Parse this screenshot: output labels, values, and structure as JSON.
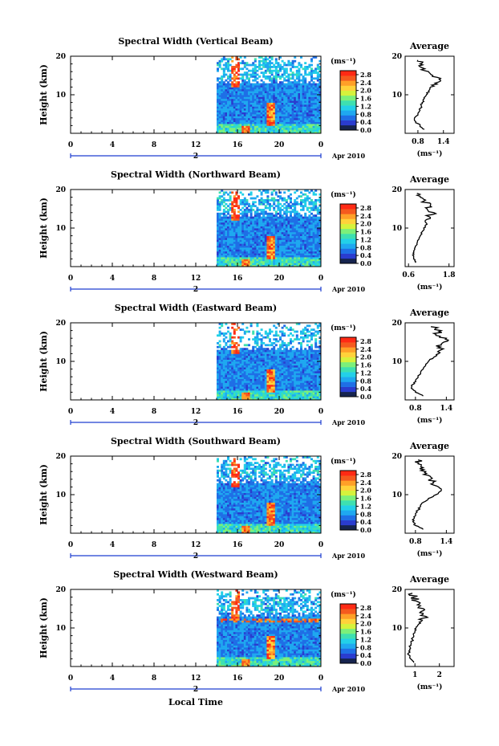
{
  "figure": {
    "xlabel": "Local Time",
    "date_label": "Apr 2010",
    "day_label": "2",
    "ylabel": "Height (km)",
    "colorbar_unit": "(ms⁻¹)",
    "average_title": "Average",
    "average_unit": "(ms⁻¹)"
  },
  "colors": {
    "scale": [
      "#16244f",
      "#2a3ccf",
      "#1f6fe6",
      "#1fa8f0",
      "#23d0e8",
      "#3ee0b0",
      "#7cf07a",
      "#d6f23c",
      "#ffd23a",
      "#ffa028",
      "#f55a1e",
      "#ff2a14"
    ]
  },
  "chart_data": [
    {
      "type": "heatmap",
      "title": "Spectral Width (Vertical Beam)",
      "x_ticks": [
        "0",
        "4",
        "8",
        "12",
        "16",
        "20",
        "0"
      ],
      "xlim": [
        0,
        24
      ],
      "y_ticks": [
        "10",
        "20"
      ],
      "ylim": [
        0,
        20
      ],
      "data_x_range": [
        14,
        24
      ],
      "colorbar_ticks": [
        "2.8",
        "2.4",
        "2.0",
        "1.6",
        "1.2",
        "0.8",
        "0.4",
        "0.0"
      ],
      "colorbar_range": [
        0,
        3.0
      ],
      "average": {
        "title": "Average",
        "x_ticks": [
          "0.8",
          "1.4"
        ],
        "x_tick_values": [
          0.8,
          1.4
        ],
        "xlim": [
          0.5,
          1.65
        ],
        "heights": [
          1,
          2,
          3,
          4,
          5,
          6,
          7,
          8,
          9,
          10,
          11,
          12,
          13,
          14,
          15,
          16,
          17,
          18,
          19
        ],
        "values": [
          0.95,
          0.85,
          0.75,
          0.72,
          0.8,
          0.85,
          0.88,
          0.9,
          0.95,
          1.0,
          1.05,
          1.1,
          1.2,
          1.3,
          1.15,
          1.05,
          0.9,
          0.85,
          0.8
        ]
      }
    },
    {
      "type": "heatmap",
      "title": "Spectral Width (Northward Beam)",
      "x_ticks": [
        "0",
        "4",
        "8",
        "12",
        "16",
        "20",
        "0"
      ],
      "xlim": [
        0,
        24
      ],
      "y_ticks": [
        "10",
        "20"
      ],
      "ylim": [
        0,
        20
      ],
      "data_x_range": [
        14,
        24
      ],
      "colorbar_ticks": [
        "2.8",
        "2.4",
        "2.0",
        "1.6",
        "1.2",
        "0.8",
        "0.4",
        "0.0"
      ],
      "colorbar_range": [
        0,
        3.0
      ],
      "average": {
        "title": "Average",
        "x_ticks": [
          "0.6",
          "1.8"
        ],
        "x_tick_values": [
          0.6,
          1.8
        ],
        "xlim": [
          0.5,
          1.95
        ],
        "heights": [
          1,
          2,
          3,
          4,
          5,
          6,
          7,
          8,
          9,
          10,
          11,
          12,
          13,
          14,
          15,
          16,
          17,
          18,
          19
        ],
        "values": [
          0.8,
          0.75,
          0.72,
          0.75,
          0.8,
          0.85,
          0.9,
          0.95,
          1.0,
          1.05,
          1.15,
          1.1,
          1.2,
          1.35,
          1.15,
          1.25,
          1.05,
          0.95,
          0.85
        ]
      }
    },
    {
      "type": "heatmap",
      "title": "Spectral Width (Eastward Beam)",
      "x_ticks": [
        "0",
        "4",
        "8",
        "12",
        "16",
        "20",
        "0"
      ],
      "xlim": [
        0,
        24
      ],
      "y_ticks": [
        "10",
        "20"
      ],
      "ylim": [
        0,
        20
      ],
      "data_x_range": [
        14,
        24
      ],
      "colorbar_ticks": [
        "2.8",
        "2.4",
        "2.0",
        "1.6",
        "1.2",
        "0.8",
        "0.4",
        "0.0"
      ],
      "colorbar_range": [
        0,
        3.0
      ],
      "average": {
        "title": "Average",
        "x_ticks": [
          "0.8",
          "1.4"
        ],
        "x_tick_values": [
          0.8,
          1.4
        ],
        "xlim": [
          0.6,
          1.55
        ],
        "heights": [
          1,
          2,
          3,
          4,
          5,
          6,
          7,
          8,
          9,
          10,
          11,
          12,
          13,
          14,
          15,
          16,
          17,
          18,
          19
        ],
        "values": [
          0.95,
          0.8,
          0.72,
          0.75,
          0.8,
          0.85,
          0.9,
          0.95,
          1.0,
          1.05,
          1.15,
          1.25,
          1.3,
          1.2,
          1.35,
          1.4,
          1.2,
          1.3,
          1.1
        ]
      }
    },
    {
      "type": "heatmap",
      "title": "Spectral Width (Southward Beam)",
      "x_ticks": [
        "0",
        "4",
        "8",
        "12",
        "16",
        "20",
        "0"
      ],
      "xlim": [
        0,
        24
      ],
      "y_ticks": [
        "10",
        "20"
      ],
      "ylim": [
        0,
        20
      ],
      "data_x_range": [
        14,
        24
      ],
      "colorbar_ticks": [
        "2.8",
        "2.4",
        "2.0",
        "1.6",
        "1.2",
        "0.8",
        "0.4",
        "0.0"
      ],
      "colorbar_range": [
        0,
        3.0
      ],
      "average": {
        "title": "Average",
        "x_ticks": [
          "0.8",
          "1.4"
        ],
        "x_tick_values": [
          0.8,
          1.4
        ],
        "xlim": [
          0.6,
          1.55
        ],
        "heights": [
          1,
          2,
          3,
          4,
          5,
          6,
          7,
          8,
          9,
          10,
          11,
          12,
          13,
          14,
          15,
          16,
          17,
          18,
          19
        ],
        "values": [
          0.95,
          0.8,
          0.75,
          0.78,
          0.8,
          0.85,
          0.9,
          0.95,
          1.05,
          1.2,
          1.3,
          1.25,
          1.15,
          1.1,
          1.05,
          1.0,
          0.95,
          0.85,
          0.85
        ]
      }
    },
    {
      "type": "heatmap",
      "title": "Spectral Width (Westward Beam)",
      "x_ticks": [
        "0",
        "4",
        "8",
        "12",
        "16",
        "20",
        "0"
      ],
      "xlim": [
        0,
        24
      ],
      "y_ticks": [
        "10",
        "20"
      ],
      "ylim": [
        0,
        20
      ],
      "data_x_range": [
        14,
        24
      ],
      "colorbar_ticks": [
        "2.8",
        "2.4",
        "2.0",
        "1.6",
        "1.2",
        "0.8",
        "0.4",
        "0.0"
      ],
      "colorbar_range": [
        0,
        3.0
      ],
      "average": {
        "title": "Average",
        "x_ticks": [
          "1",
          "2"
        ],
        "x_tick_values": [
          1,
          2
        ],
        "xlim": [
          0.6,
          2.6
        ],
        "heights": [
          1,
          2,
          3,
          4,
          5,
          6,
          7,
          8,
          9,
          10,
          11,
          12,
          13,
          14,
          15,
          16,
          17,
          18,
          19
        ],
        "values": [
          0.95,
          0.82,
          0.75,
          0.75,
          0.8,
          0.85,
          0.9,
          0.95,
          1.0,
          1.05,
          1.15,
          1.3,
          1.45,
          1.2,
          1.35,
          1.1,
          1.05,
          0.95,
          0.9
        ]
      }
    }
  ]
}
